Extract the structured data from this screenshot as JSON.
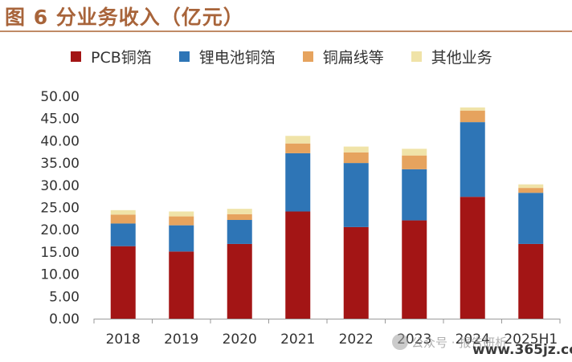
{
  "chart_data": {
    "type": "bar",
    "stacked": true,
    "title": "图 6  分业务收入（亿元）",
    "categories": [
      "2018",
      "2019",
      "2020",
      "2021",
      "2022",
      "2023",
      "2024",
      "2025H1"
    ],
    "series": [
      {
        "name": "PCB铜箔",
        "color": "#a31515",
        "values": [
          16.3,
          15.1,
          16.8,
          24.1,
          20.6,
          22.1,
          27.4,
          16.8
        ]
      },
      {
        "name": "锂电池铜箔",
        "color": "#2e75b6",
        "values": [
          5.1,
          5.9,
          5.4,
          13.1,
          14.4,
          11.5,
          16.8,
          11.5
        ]
      },
      {
        "name": "铜扁线等",
        "color": "#e6a35e",
        "values": [
          2.0,
          2.0,
          1.3,
          2.2,
          2.4,
          3.1,
          2.6,
          1.1
        ]
      },
      {
        "name": "其他业务",
        "color": "#f0e3a8",
        "values": [
          1.0,
          1.1,
          1.2,
          1.7,
          1.3,
          1.5,
          0.7,
          0.8
        ]
      }
    ],
    "ylim": [
      0,
      50
    ],
    "yticks": [
      "0.00",
      "5.00",
      "10.00",
      "15.00",
      "20.00",
      "25.00",
      "30.00",
      "35.00",
      "40.00",
      "45.00",
      "50.00"
    ],
    "grid": false,
    "legend_position": "top",
    "xlabel": "",
    "ylabel": ""
  },
  "watermark": {
    "text": "公众号 · 报告研析",
    "site": "www.365jz.com"
  }
}
